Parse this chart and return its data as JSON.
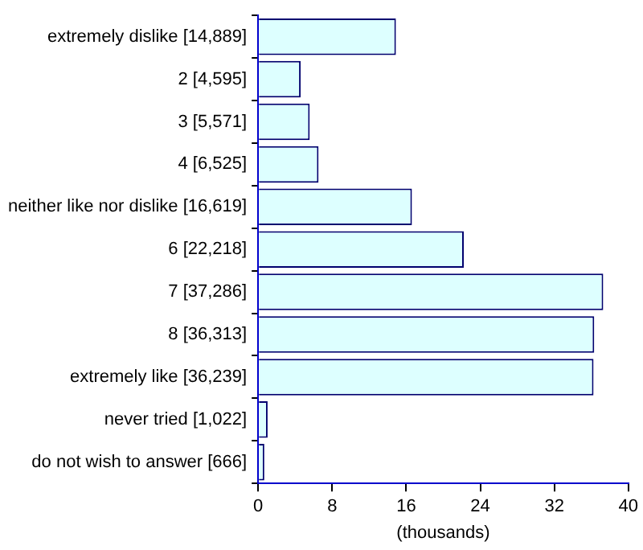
{
  "chart_data": {
    "type": "bar",
    "orientation": "horizontal",
    "xlabel": "(thousands)",
    "categories": [
      "extremely dislike [14,889]",
      "2 [4,595]",
      "3 [5,571]",
      "4 [6,525]",
      "neither like nor dislike [16,619]",
      "6 [22,218]",
      "7 [37,286]",
      "8 [36,313]",
      "extremely like [36,239]",
      "never tried [1,022]",
      "do not wish to answer [666]"
    ],
    "values": [
      14.889,
      4.595,
      5.571,
      6.525,
      16.619,
      22.218,
      37.286,
      36.313,
      36.239,
      1.022,
      0.666
    ],
    "color": "#ddffff",
    "xlim": [
      0,
      40
    ],
    "xticks": [
      0,
      8,
      16,
      24,
      32,
      40
    ],
    "grid": false,
    "legend": false
  }
}
